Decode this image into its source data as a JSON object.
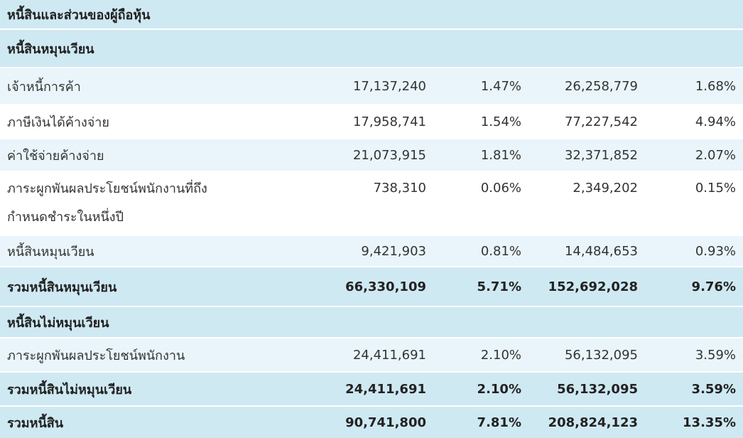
{
  "table": {
    "title": "หนี้สินและส่วนของผู้ถือหุ้น",
    "section_current": "หนี้สินหมุนเวียน",
    "rows_current": [
      {
        "label": "เจ้าหนี้การค้า",
        "a": "17,137,240",
        "ap": "1.47%",
        "b": "26,258,779",
        "bp": "1.68%"
      },
      {
        "label": "ภาษีเงินได้ค้างจ่าย",
        "a": "17,958,741",
        "ap": "1.54%",
        "b": "77,227,542",
        "bp": "4.94%"
      },
      {
        "label": "ค่าใช้จ่ายค้างจ่าย",
        "a": "21,073,915",
        "ap": "1.81%",
        "b": "32,371,852",
        "bp": "2.07%"
      },
      {
        "label_line1": "ภาระผูกพันผลประโยชน์พนักงานที่ถึง",
        "label_line2": "กำหนดชำระในหนึ่งปี",
        "a": "738,310",
        "ap": "0.06%",
        "b": "2,349,202",
        "bp": "0.15%"
      },
      {
        "label": "หนี้สินหมุนเวียน",
        "a": "9,421,903",
        "ap": "0.81%",
        "b": "14,484,653",
        "bp": "0.93%"
      }
    ],
    "total_current": {
      "label": "รวมหนี้สินหมุนเวียน",
      "a": "66,330,109",
      "ap": "5.71%",
      "b": "152,692,028",
      "bp": "9.76%"
    },
    "section_noncurrent": "หนี้สินไม่หมุนเวียน",
    "rows_noncurrent": [
      {
        "label": "ภาระผูกพันผลประโยชน์พนักงาน",
        "a": "24,411,691",
        "ap": "2.10%",
        "b": "56,132,095",
        "bp": "3.59%"
      }
    ],
    "total_noncurrent": {
      "label": "รวมหนี้สินไม่หมุนเวียน",
      "a": "24,411,691",
      "ap": "2.10%",
      "b": "56,132,095",
      "bp": "3.59%"
    },
    "total_liabilities": {
      "label": "รวมหนี้สิน",
      "a": "90,741,800",
      "ap": "7.81%",
      "b": "208,824,123",
      "bp": "13.35%"
    }
  }
}
